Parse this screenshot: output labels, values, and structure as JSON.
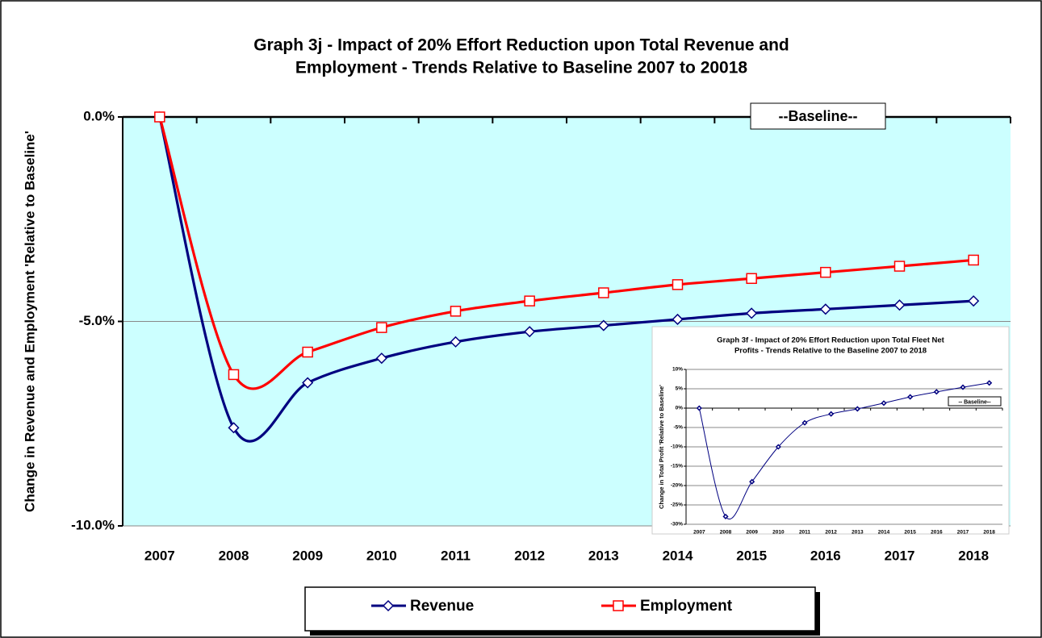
{
  "chart_data": [
    {
      "type": "line",
      "title": [
        "Graph 3j - Impact of 20% Effort Reduction upon Total Revenue and",
        "Employment  - Trends Relative to Baseline 2007 to 20018"
      ],
      "y_label": "Change in Revenue and Employment 'Relative to Baseline'",
      "annotation": "--Baseline--",
      "categories": [
        "2007",
        "2008",
        "2009",
        "2010",
        "2011",
        "2012",
        "2013",
        "2014",
        "2015",
        "2016",
        "2017",
        "2018"
      ],
      "series": [
        {
          "name": "Revenue",
          "color": "#000080",
          "marker": "diamond",
          "values": [
            0,
            -7.6,
            -6.5,
            -5.9,
            -5.5,
            -5.25,
            -5.1,
            -4.95,
            -4.8,
            -4.7,
            -4.6,
            -4.5
          ]
        },
        {
          "name": "Employment",
          "color": "#ff0000",
          "marker": "square",
          "values": [
            0,
            -6.3,
            -5.75,
            -5.15,
            -4.75,
            -4.5,
            -4.3,
            -4.1,
            -3.95,
            -3.8,
            -3.65,
            -3.5
          ]
        }
      ],
      "ylim": [
        -10,
        0
      ],
      "yticks": [
        {
          "value": 0,
          "label": "0.0%"
        },
        {
          "value": -5,
          "label": "-5.0%"
        },
        {
          "value": -10,
          "label": "-10.0%"
        }
      ],
      "grid": true,
      "plot_background": "#ccffff",
      "legend": "bottom"
    },
    {
      "type": "line",
      "title": [
        "Graph 3f - Impact of 20% Effort Reduction upon Total Fleet Net",
        "Profits - Trends Relative to the Baseline 2007 to 2018"
      ],
      "y_label": "Change in Total Profit 'Relative to Baseline'",
      "annotation": "-- Baseline--",
      "categories": [
        "2007",
        "2008",
        "2009",
        "2010",
        "2011",
        "2012",
        "2013",
        "2014",
        "2015",
        "2016",
        "2017",
        "2018"
      ],
      "values": [
        0,
        -28,
        -19,
        -10,
        -3.8,
        -1.5,
        -0.2,
        1.3,
        2.9,
        4.2,
        5.4,
        6.5
      ],
      "color": "#000080",
      "marker": "diamond",
      "ylim": [
        -30,
        10
      ],
      "yticks": [
        {
          "value": 10,
          "label": "10%"
        },
        {
          "value": 5,
          "label": "5%"
        },
        {
          "value": 0,
          "label": "0%"
        },
        {
          "value": -5,
          "label": "-5%"
        },
        {
          "value": -10,
          "label": "-10%"
        },
        {
          "value": -15,
          "label": "-15%"
        },
        {
          "value": -20,
          "label": "-20%"
        },
        {
          "value": -25,
          "label": "-25%"
        },
        {
          "value": -30,
          "label": "-30%"
        }
      ],
      "grid": true,
      "plot_background": "#ffffff"
    }
  ]
}
